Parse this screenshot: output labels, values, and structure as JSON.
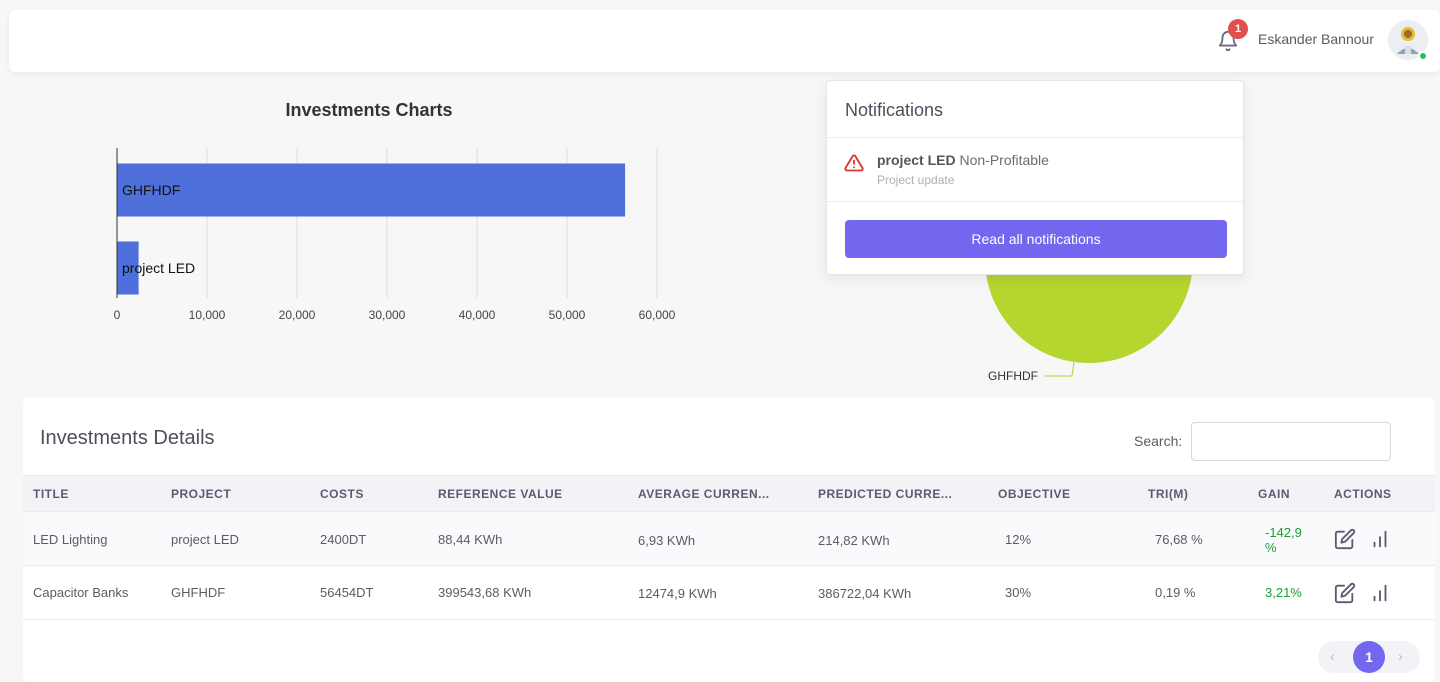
{
  "header": {
    "notification_count": "1",
    "user_name": "Eskander Bannour"
  },
  "bar_chart_title": "Investments Charts",
  "chart_data": [
    {
      "type": "bar",
      "orientation": "horizontal",
      "title": "Investments Charts",
      "categories": [
        "GHFHDF",
        "project LED"
      ],
      "values": [
        56454,
        2400
      ],
      "xlim": [
        0,
        60000
      ],
      "xticks": [
        "0",
        "10,000",
        "20,000",
        "30,000",
        "40,000",
        "50,000",
        "60,000"
      ],
      "grid": true,
      "color": "#4f6fdb"
    },
    {
      "type": "pie",
      "categories": [
        "GHFHDF"
      ],
      "values": [
        56454
      ],
      "colors": [
        "#b5d52f"
      ]
    }
  ],
  "notifications": {
    "title": "Notifications",
    "items": [
      {
        "project": "project LED",
        "status": "Non-Profitable",
        "subtitle": "Project update",
        "icon": "warning-triangle-icon"
      }
    ],
    "read_all_label": "Read all notifications"
  },
  "details": {
    "title": "Investments Details",
    "search_label": "Search:",
    "columns": [
      "TITLE",
      "PROJECT",
      "COSTS",
      "REFERENCE VALUE",
      "AVERAGE CURREN...",
      "PREDICTED CURRE...",
      "OBJECTIVE",
      "TRI(M)",
      "GAIN",
      "ACTIONS"
    ],
    "rows": [
      {
        "title": "LED Lighting",
        "project": "project LED",
        "costs": "2400DT",
        "reference": "88,44 KWh",
        "average": "6,93 KWh",
        "predicted": "214,82 KWh",
        "objective": "12%",
        "tri": "76,68 %",
        "gain_line1": "-142,9",
        "gain_line2": "%"
      },
      {
        "title": "Capacitor Banks",
        "project": "GHFHDF",
        "costs": "56454DT",
        "reference": "399543,68 KWh",
        "average": "12474,9 KWh",
        "predicted": "386722,04 KWh",
        "objective": "30%",
        "tri": "0,19 %",
        "gain_line1": "3,21%",
        "gain_line2": ""
      }
    ],
    "pagination": {
      "prev": "‹",
      "current": "1",
      "next": "›"
    }
  },
  "colors": {
    "accent": "#7367f0",
    "bar": "#4f6fdb",
    "pie": "#b5d52f",
    "gain": "#1c9d36",
    "badge": "#e2504c"
  }
}
